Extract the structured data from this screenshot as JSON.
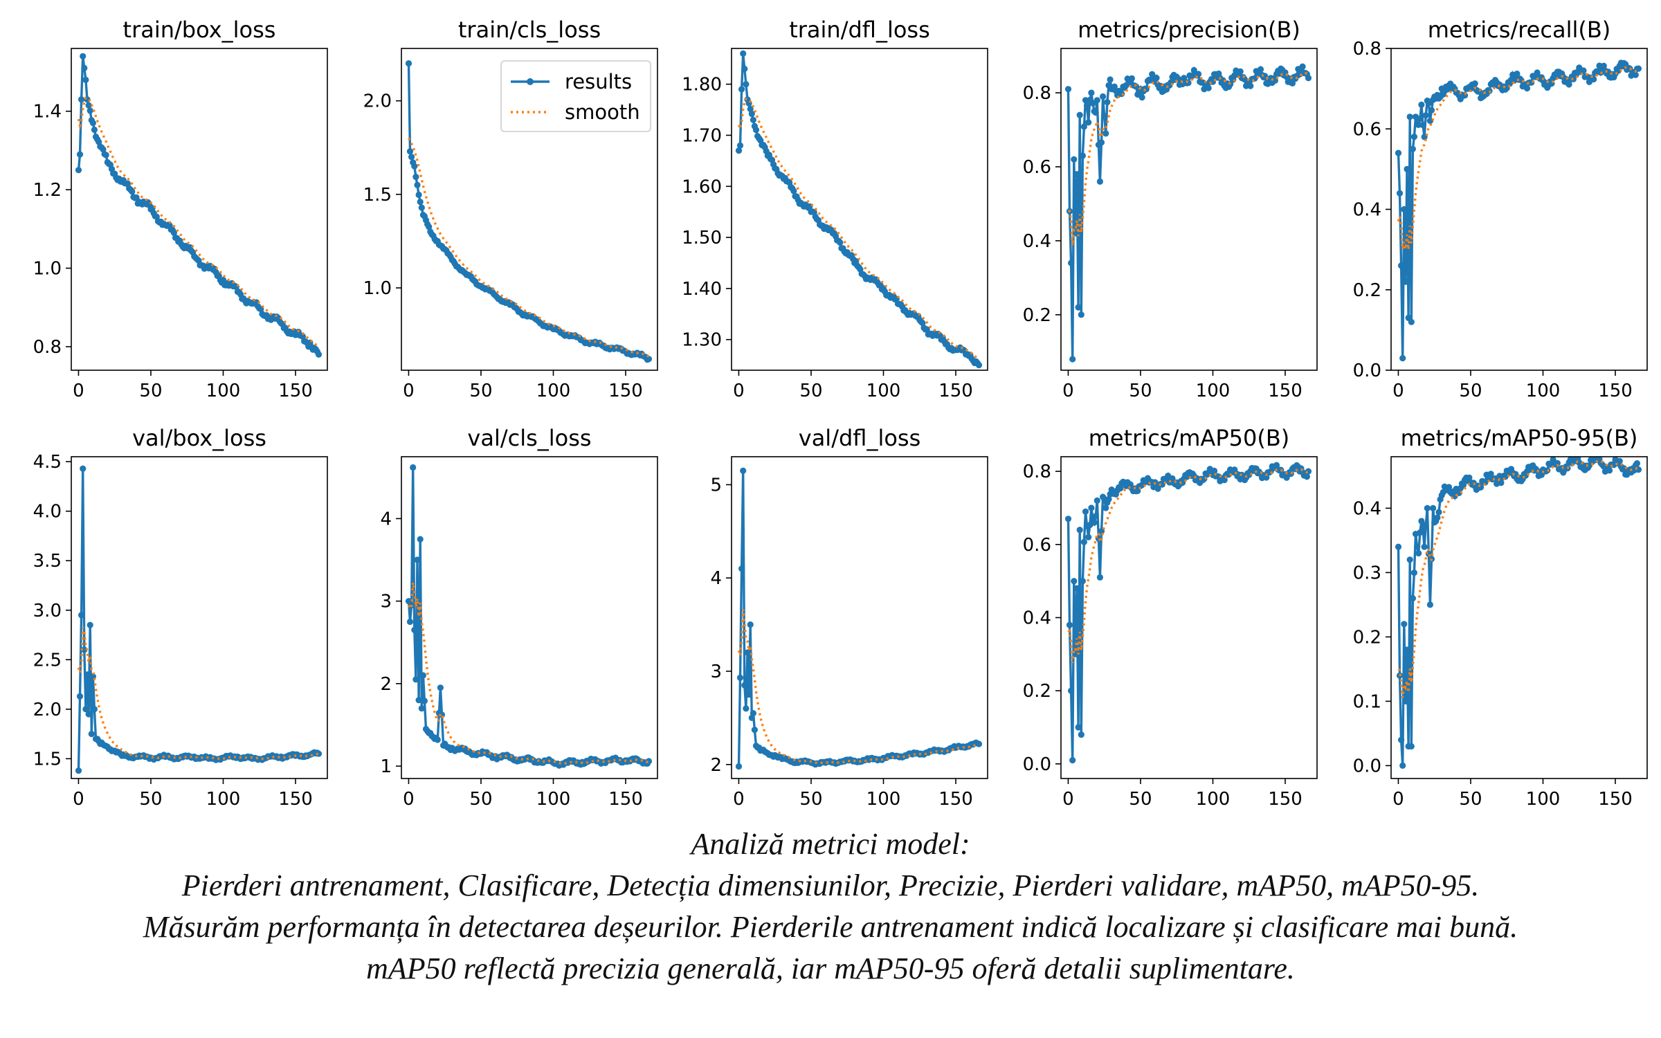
{
  "caption": {
    "line1": "Analiză metrici model:",
    "line2": "Pierderi antrenament, Clasificare, Detecția dimensiunilor, Precizie, Pierderi validare, mAP50, mAP50-95.",
    "line3": "Măsurăm performanța în detectarea deșeurilor. Pierderile antrenament indică localizare și clasificare mai bună.",
    "line4": "mAP50 reflectă precizia generală, iar mAP50-95 oferă detalii suplimentare."
  },
  "colors": {
    "results": "#1f77b4",
    "smooth": "#ff7f0e"
  },
  "legend": {
    "results_label": "results",
    "smooth_label": "smooth",
    "placement": "upper-right of train/cls_loss panel"
  },
  "chart_data": [
    {
      "type": "line",
      "title": "train/box_loss",
      "xlim": [
        -5,
        172
      ],
      "ylim": [
        0.74,
        1.56
      ],
      "xticks": [
        0,
        50,
        100,
        150
      ],
      "yticks": [
        0.8,
        1.0,
        1.2,
        1.4
      ],
      "keypoints": [
        [
          0,
          1.25
        ],
        [
          1,
          1.29
        ],
        [
          2,
          1.43
        ],
        [
          3,
          1.54
        ],
        [
          4,
          1.51
        ],
        [
          5,
          1.48
        ],
        [
          6,
          1.43
        ],
        [
          10,
          1.37
        ],
        [
          15,
          1.31
        ],
        [
          20,
          1.27
        ],
        [
          30,
          1.22
        ],
        [
          40,
          1.18
        ],
        [
          50,
          1.15
        ],
        [
          60,
          1.11
        ],
        [
          70,
          1.07
        ],
        [
          80,
          1.03
        ],
        [
          90,
          1.0
        ],
        [
          100,
          0.97
        ],
        [
          110,
          0.94
        ],
        [
          120,
          0.91
        ],
        [
          130,
          0.88
        ],
        [
          140,
          0.86
        ],
        [
          150,
          0.83
        ],
        [
          160,
          0.81
        ],
        [
          166,
          0.78
        ]
      ],
      "noise": 0.012,
      "smooth_start": 1.38
    },
    {
      "type": "line",
      "title": "train/cls_loss",
      "xlim": [
        -5,
        172
      ],
      "ylim": [
        0.56,
        2.28
      ],
      "xticks": [
        0,
        50,
        100,
        150
      ],
      "yticks": [
        1.0,
        1.5,
        2.0
      ],
      "keypoints": [
        [
          0,
          2.2
        ],
        [
          1,
          1.73
        ],
        [
          2,
          1.7
        ],
        [
          4,
          1.65
        ],
        [
          6,
          1.55
        ],
        [
          8,
          1.46
        ],
        [
          10,
          1.39
        ],
        [
          15,
          1.3
        ],
        [
          20,
          1.25
        ],
        [
          30,
          1.15
        ],
        [
          40,
          1.07
        ],
        [
          50,
          1.01
        ],
        [
          60,
          0.96
        ],
        [
          70,
          0.91
        ],
        [
          80,
          0.86
        ],
        [
          90,
          0.82
        ],
        [
          100,
          0.78
        ],
        [
          110,
          0.75
        ],
        [
          120,
          0.72
        ],
        [
          130,
          0.7
        ],
        [
          140,
          0.68
        ],
        [
          150,
          0.66
        ],
        [
          160,
          0.64
        ],
        [
          166,
          0.62
        ]
      ],
      "noise": 0.012,
      "smooth_start": 1.8
    },
    {
      "type": "line",
      "title": "train/dfl_loss",
      "xlim": [
        -5,
        172
      ],
      "ylim": [
        1.24,
        1.87
      ],
      "xticks": [
        0,
        50,
        100,
        150
      ],
      "yticks": [
        1.3,
        1.4,
        1.5,
        1.6,
        1.7,
        1.8
      ],
      "keypoints": [
        [
          0,
          1.67
        ],
        [
          1,
          1.68
        ],
        [
          2,
          1.79
        ],
        [
          3,
          1.86
        ],
        [
          4,
          1.83
        ],
        [
          5,
          1.8
        ],
        [
          6,
          1.77
        ],
        [
          10,
          1.73
        ],
        [
          15,
          1.69
        ],
        [
          20,
          1.66
        ],
        [
          30,
          1.62
        ],
        [
          40,
          1.58
        ],
        [
          50,
          1.55
        ],
        [
          60,
          1.52
        ],
        [
          70,
          1.49
        ],
        [
          80,
          1.45
        ],
        [
          90,
          1.42
        ],
        [
          100,
          1.4
        ],
        [
          110,
          1.37
        ],
        [
          120,
          1.35
        ],
        [
          130,
          1.32
        ],
        [
          140,
          1.3
        ],
        [
          150,
          1.28
        ],
        [
          160,
          1.27
        ],
        [
          166,
          1.25
        ]
      ],
      "noise": 0.008,
      "smooth_start": 1.72
    },
    {
      "type": "line",
      "title": "metrics/precision(B)",
      "xlim": [
        -5,
        172
      ],
      "ylim": [
        0.05,
        0.92
      ],
      "xticks": [
        0,
        50,
        100,
        150
      ],
      "yticks": [
        0.2,
        0.4,
        0.6,
        0.8
      ],
      "keypoints": [
        [
          0,
          0.81
        ],
        [
          1,
          0.48
        ],
        [
          2,
          0.34
        ],
        [
          3,
          0.08
        ],
        [
          4,
          0.62
        ],
        [
          5,
          0.42
        ],
        [
          6,
          0.58
        ],
        [
          7,
          0.22
        ],
        [
          8,
          0.74
        ],
        [
          9,
          0.2
        ],
        [
          10,
          0.63
        ],
        [
          12,
          0.78
        ],
        [
          14,
          0.72
        ],
        [
          16,
          0.8
        ],
        [
          18,
          0.75
        ],
        [
          20,
          0.78
        ],
        [
          22,
          0.56
        ],
        [
          24,
          0.79
        ],
        [
          26,
          0.69
        ],
        [
          28,
          0.82
        ],
        [
          30,
          0.81
        ],
        [
          40,
          0.82
        ],
        [
          50,
          0.81
        ],
        [
          60,
          0.83
        ],
        [
          70,
          0.82
        ],
        [
          80,
          0.84
        ],
        [
          100,
          0.83
        ],
        [
          120,
          0.84
        ],
        [
          140,
          0.84
        ],
        [
          160,
          0.85
        ],
        [
          166,
          0.84
        ]
      ],
      "noise": 0.025,
      "smooth_start": 0.48
    },
    {
      "type": "line",
      "title": "metrics/recall(B)",
      "xlim": [
        -5,
        172
      ],
      "ylim": [
        0.0,
        0.8
      ],
      "xticks": [
        0,
        50,
        100,
        150
      ],
      "yticks": [
        0.0,
        0.2,
        0.4,
        0.6,
        0.8
      ],
      "keypoints": [
        [
          0,
          0.54
        ],
        [
          1,
          0.44
        ],
        [
          2,
          0.26
        ],
        [
          3,
          0.03
        ],
        [
          4,
          0.4
        ],
        [
          5,
          0.22
        ],
        [
          6,
          0.5
        ],
        [
          7,
          0.13
        ],
        [
          8,
          0.63
        ],
        [
          9,
          0.12
        ],
        [
          10,
          0.55
        ],
        [
          12,
          0.63
        ],
        [
          14,
          0.61
        ],
        [
          16,
          0.66
        ],
        [
          18,
          0.58
        ],
        [
          20,
          0.67
        ],
        [
          22,
          0.62
        ],
        [
          25,
          0.68
        ],
        [
          30,
          0.7
        ],
        [
          40,
          0.69
        ],
        [
          50,
          0.7
        ],
        [
          60,
          0.69
        ],
        [
          70,
          0.71
        ],
        [
          80,
          0.72
        ],
        [
          100,
          0.72
        ],
        [
          120,
          0.73
        ],
        [
          140,
          0.74
        ],
        [
          160,
          0.75
        ],
        [
          166,
          0.75
        ]
      ],
      "noise": 0.02,
      "smooth_start": 0.37
    },
    {
      "type": "line",
      "title": "val/box_loss",
      "xlim": [
        -5,
        172
      ],
      "ylim": [
        1.3,
        4.55
      ],
      "xticks": [
        0,
        50,
        100,
        150
      ],
      "yticks": [
        1.5,
        2.0,
        2.5,
        3.0,
        3.5,
        4.0,
        4.5
      ],
      "keypoints": [
        [
          0,
          1.38
        ],
        [
          1,
          2.13
        ],
        [
          2,
          2.95
        ],
        [
          3,
          4.43
        ],
        [
          4,
          2.6
        ],
        [
          5,
          2.0
        ],
        [
          6,
          2.35
        ],
        [
          7,
          1.95
        ],
        [
          8,
          2.85
        ],
        [
          9,
          1.75
        ],
        [
          10,
          2.33
        ],
        [
          11,
          2.0
        ],
        [
          12,
          1.7
        ],
        [
          15,
          1.65
        ],
        [
          20,
          1.62
        ],
        [
          25,
          1.58
        ],
        [
          30,
          1.53
        ],
        [
          40,
          1.52
        ],
        [
          50,
          1.51
        ],
        [
          60,
          1.52
        ],
        [
          70,
          1.51
        ],
        [
          80,
          1.52
        ],
        [
          90,
          1.5
        ],
        [
          100,
          1.51
        ],
        [
          110,
          1.52
        ],
        [
          120,
          1.5
        ],
        [
          130,
          1.51
        ],
        [
          140,
          1.52
        ],
        [
          150,
          1.53
        ],
        [
          160,
          1.54
        ],
        [
          166,
          1.55
        ]
      ],
      "noise": 0.02,
      "smooth_start": 2.42
    },
    {
      "type": "line",
      "title": "val/cls_loss",
      "xlim": [
        -5,
        172
      ],
      "ylim": [
        0.85,
        4.75
      ],
      "xticks": [
        0,
        50,
        100,
        150
      ],
      "yticks": [
        1,
        2,
        3,
        4
      ],
      "keypoints": [
        [
          0,
          3.0
        ],
        [
          1,
          2.75
        ],
        [
          2,
          2.95
        ],
        [
          3,
          4.62
        ],
        [
          4,
          2.65
        ],
        [
          5,
          2.05
        ],
        [
          6,
          3.5
        ],
        [
          7,
          1.8
        ],
        [
          8,
          3.75
        ],
        [
          9,
          1.7
        ],
        [
          10,
          2.1
        ],
        [
          12,
          1.45
        ],
        [
          15,
          1.4
        ],
        [
          20,
          1.32
        ],
        [
          22,
          1.95
        ],
        [
          24,
          1.25
        ],
        [
          30,
          1.22
        ],
        [
          40,
          1.18
        ],
        [
          50,
          1.15
        ],
        [
          60,
          1.12
        ],
        [
          70,
          1.1
        ],
        [
          80,
          1.08
        ],
        [
          90,
          1.06
        ],
        [
          100,
          1.04
        ],
        [
          110,
          1.04
        ],
        [
          120,
          1.05
        ],
        [
          130,
          1.06
        ],
        [
          140,
          1.07
        ],
        [
          150,
          1.07
        ],
        [
          160,
          1.06
        ],
        [
          166,
          1.06
        ]
      ],
      "noise": 0.035,
      "smooth_start": 2.95
    },
    {
      "type": "line",
      "title": "val/dfl_loss",
      "xlim": [
        -5,
        172
      ],
      "ylim": [
        1.85,
        5.3
      ],
      "xticks": [
        0,
        50,
        100,
        150
      ],
      "yticks": [
        2,
        3,
        4,
        5
      ],
      "keypoints": [
        [
          0,
          1.98
        ],
        [
          1,
          2.93
        ],
        [
          2,
          4.1
        ],
        [
          3,
          5.15
        ],
        [
          4,
          2.85
        ],
        [
          5,
          2.6
        ],
        [
          6,
          3.2
        ],
        [
          7,
          2.75
        ],
        [
          8,
          3.5
        ],
        [
          9,
          2.5
        ],
        [
          10,
          2.55
        ],
        [
          12,
          2.2
        ],
        [
          15,
          2.15
        ],
        [
          20,
          2.12
        ],
        [
          25,
          2.1
        ],
        [
          30,
          2.06
        ],
        [
          40,
          2.03
        ],
        [
          50,
          2.02
        ],
        [
          60,
          2.02
        ],
        [
          70,
          2.03
        ],
        [
          80,
          2.04
        ],
        [
          90,
          2.05
        ],
        [
          100,
          2.07
        ],
        [
          110,
          2.09
        ],
        [
          120,
          2.11
        ],
        [
          130,
          2.13
        ],
        [
          140,
          2.15
        ],
        [
          150,
          2.18
        ],
        [
          160,
          2.21
        ],
        [
          166,
          2.22
        ]
      ],
      "noise": 0.02,
      "smooth_start": 3.22
    },
    {
      "type": "line",
      "title": "metrics/mAP50(B)",
      "xlim": [
        -5,
        172
      ],
      "ylim": [
        -0.04,
        0.84
      ],
      "xticks": [
        0,
        50,
        100,
        150
      ],
      "yticks": [
        0.0,
        0.2,
        0.4,
        0.6,
        0.8
      ],
      "keypoints": [
        [
          0,
          0.67
        ],
        [
          1,
          0.38
        ],
        [
          2,
          0.2
        ],
        [
          3,
          0.01
        ],
        [
          4,
          0.5
        ],
        [
          5,
          0.3
        ],
        [
          6,
          0.48
        ],
        [
          7,
          0.1
        ],
        [
          8,
          0.64
        ],
        [
          9,
          0.08
        ],
        [
          10,
          0.5
        ],
        [
          12,
          0.69
        ],
        [
          14,
          0.62
        ],
        [
          16,
          0.7
        ],
        [
          18,
          0.66
        ],
        [
          20,
          0.72
        ],
        [
          22,
          0.51
        ],
        [
          24,
          0.73
        ],
        [
          26,
          0.7
        ],
        [
          30,
          0.75
        ],
        [
          40,
          0.76
        ],
        [
          50,
          0.76
        ],
        [
          60,
          0.77
        ],
        [
          70,
          0.77
        ],
        [
          80,
          0.78
        ],
        [
          100,
          0.79
        ],
        [
          120,
          0.79
        ],
        [
          140,
          0.8
        ],
        [
          160,
          0.8
        ],
        [
          166,
          0.8
        ]
      ],
      "noise": 0.018,
      "smooth_start": 0.36
    },
    {
      "type": "line",
      "title": "metrics/mAP50-95(B)",
      "xlim": [
        -5,
        172
      ],
      "ylim": [
        -0.02,
        0.48
      ],
      "xticks": [
        0,
        50,
        100,
        150
      ],
      "yticks": [
        0.0,
        0.1,
        0.2,
        0.3,
        0.4
      ],
      "keypoints": [
        [
          0,
          0.34
        ],
        [
          1,
          0.14
        ],
        [
          2,
          0.04
        ],
        [
          3,
          0.0
        ],
        [
          4,
          0.22
        ],
        [
          5,
          0.1
        ],
        [
          6,
          0.18
        ],
        [
          7,
          0.03
        ],
        [
          8,
          0.32
        ],
        [
          9,
          0.03
        ],
        [
          10,
          0.26
        ],
        [
          12,
          0.36
        ],
        [
          14,
          0.33
        ],
        [
          16,
          0.38
        ],
        [
          18,
          0.34
        ],
        [
          20,
          0.4
        ],
        [
          22,
          0.25
        ],
        [
          24,
          0.4
        ],
        [
          26,
          0.38
        ],
        [
          30,
          0.42
        ],
        [
          40,
          0.43
        ],
        [
          50,
          0.44
        ],
        [
          60,
          0.44
        ],
        [
          70,
          0.45
        ],
        [
          80,
          0.45
        ],
        [
          100,
          0.46
        ],
        [
          120,
          0.47
        ],
        [
          140,
          0.47
        ],
        [
          160,
          0.46
        ],
        [
          166,
          0.46
        ]
      ],
      "noise": 0.012,
      "smooth_start": 0.15
    }
  ]
}
